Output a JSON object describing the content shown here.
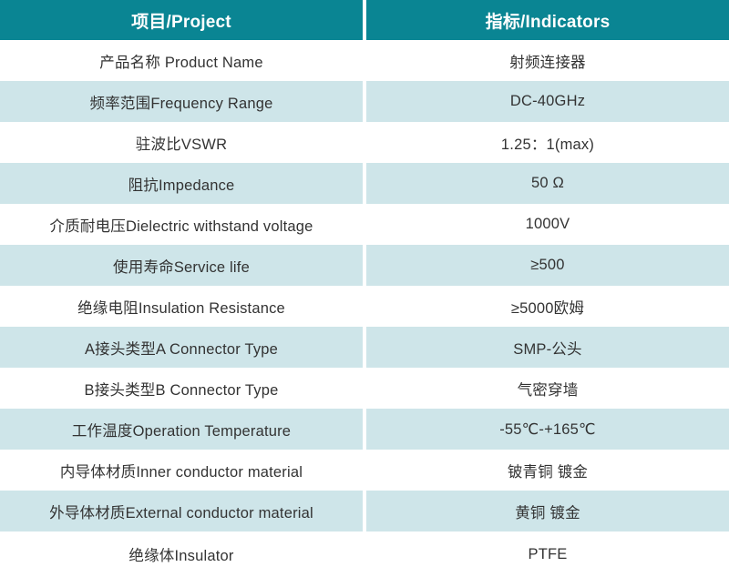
{
  "colors": {
    "header_bg": "#0a8593",
    "stripe_bg": "#cee5e9",
    "text": "#333333",
    "header_text": "#ffffff"
  },
  "header": {
    "project_label": "项目/Project",
    "indicators_label": "指标/Indicators"
  },
  "rows": [
    {
      "project": "产品名称 Product Name",
      "indicator": "射频连接器"
    },
    {
      "project": "频率范围Frequency Range",
      "indicator": "DC-40GHz"
    },
    {
      "project": "驻波比VSWR",
      "indicator": "1.25：1(max)"
    },
    {
      "project": "阻抗Impedance",
      "indicator": "50 Ω"
    },
    {
      "project": "介质耐电压Dielectric withstand voltage",
      "indicator": "1000V"
    },
    {
      "project": "使用寿命Service life",
      "indicator": "≥500"
    },
    {
      "project": "绝缘电阻Insulation Resistance",
      "indicator": "≥5000欧姆"
    },
    {
      "project": "A接头类型A Connector Type",
      "indicator": "SMP-公头"
    },
    {
      "project": "B接头类型B Connector Type",
      "indicator": "气密穿墙"
    },
    {
      "project": "工作温度Operation Temperature",
      "indicator": "-55℃-+165℃"
    },
    {
      "project": "内导体材质Inner conductor material",
      "indicator": "铍青铜 镀金"
    },
    {
      "project": "外导体材质External conductor material",
      "indicator": "黄铜 镀金"
    },
    {
      "project": "绝缘体Insulator",
      "indicator": "PTFE"
    }
  ]
}
